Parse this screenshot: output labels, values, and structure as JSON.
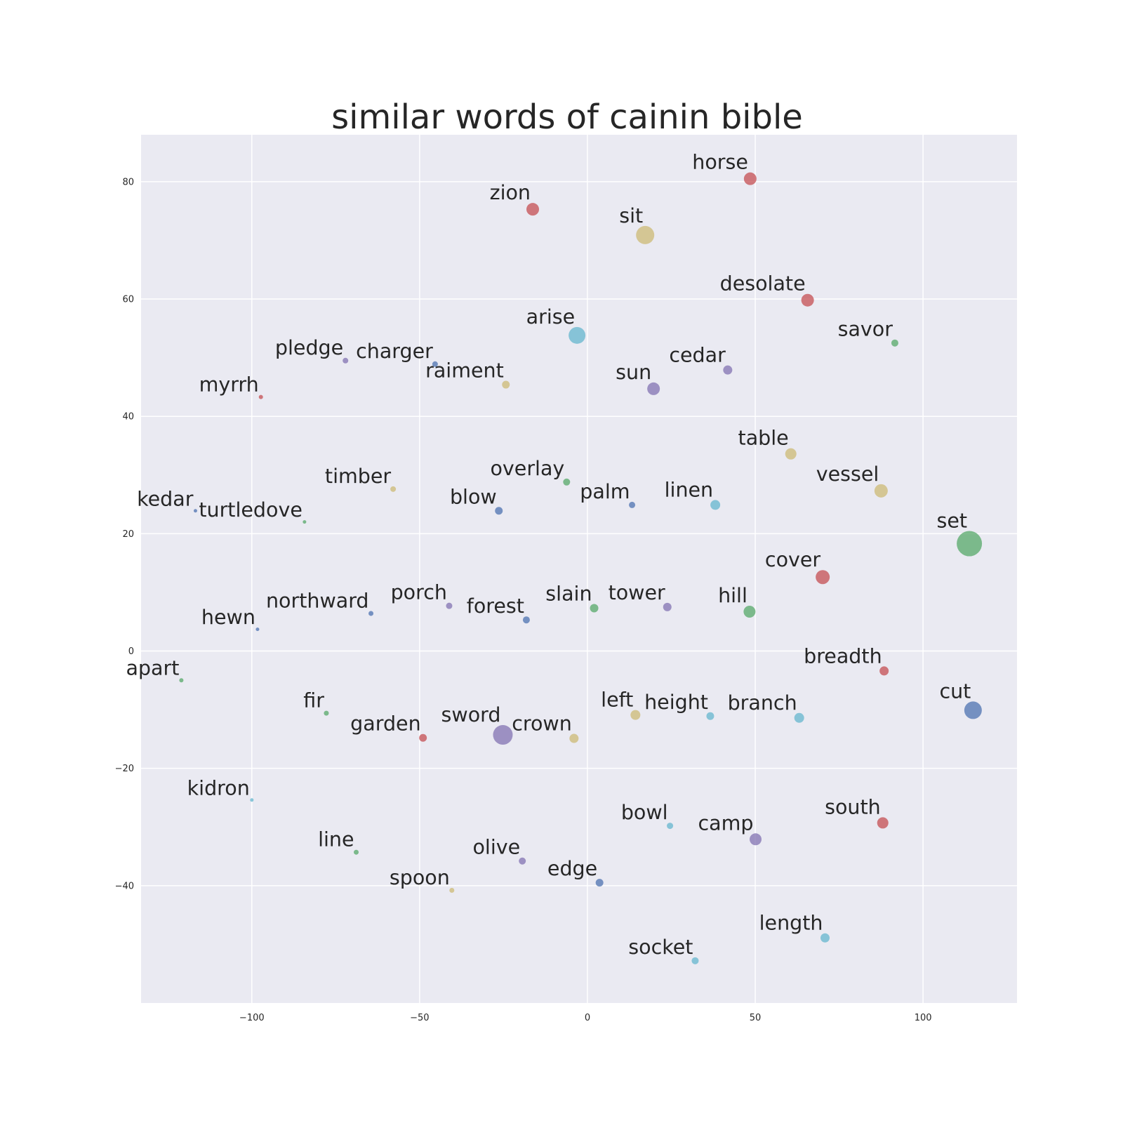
{
  "chart_data": {
    "type": "scatter",
    "title": "similar words of cainin bible",
    "xlabel": "",
    "ylabel": "",
    "xlim": [
      -133,
      128
    ],
    "ylim": [
      -60,
      88
    ],
    "x_ticks": [
      -100,
      -50,
      0,
      50,
      100
    ],
    "y_ticks": [
      80,
      60,
      40,
      20,
      0,
      -20,
      -40
    ],
    "x_tick_labels": [
      "−100",
      "−50",
      "0",
      "50",
      "100"
    ],
    "y_tick_labels": [
      "80",
      "60",
      "40",
      "20",
      "0",
      "−20",
      "−40"
    ],
    "grid": true,
    "background": "#eaeaf2",
    "palette": {
      "blue": "#4c72b0",
      "green": "#55a868",
      "red": "#c44e52",
      "purple": "#8172b2",
      "yellow": "#ccb974",
      "cyan": "#64b5cd"
    },
    "points": [
      {
        "word": "horse",
        "x": 48.5,
        "y": 80.5,
        "size": 9,
        "color": "red"
      },
      {
        "word": "zion",
        "x": -16.3,
        "y": 75.3,
        "size": 9,
        "color": "red"
      },
      {
        "word": "sit",
        "x": 17.2,
        "y": 70.9,
        "size": 13,
        "color": "yellow"
      },
      {
        "word": "desolate",
        "x": 65.6,
        "y": 59.8,
        "size": 9,
        "color": "red"
      },
      {
        "word": "arise",
        "x": -3.1,
        "y": 53.8,
        "size": 12,
        "color": "cyan"
      },
      {
        "word": "savor",
        "x": 91.6,
        "y": 52.5,
        "size": 5,
        "color": "green"
      },
      {
        "word": "pledge",
        "x": -72.1,
        "y": 49.5,
        "size": 4,
        "color": "purple"
      },
      {
        "word": "charger",
        "x": -45.4,
        "y": 48.9,
        "size": 4,
        "color": "blue"
      },
      {
        "word": "cedar",
        "x": 41.8,
        "y": 47.9,
        "size": 6.5,
        "color": "purple"
      },
      {
        "word": "raiment",
        "x": -24.3,
        "y": 45.4,
        "size": 5.5,
        "color": "yellow"
      },
      {
        "word": "sun",
        "x": 19.7,
        "y": 44.7,
        "size": 9,
        "color": "purple"
      },
      {
        "word": "myrrh",
        "x": -97.3,
        "y": 43.3,
        "size": 3,
        "color": "red"
      },
      {
        "word": "table",
        "x": 60.6,
        "y": 33.6,
        "size": 8,
        "color": "yellow"
      },
      {
        "word": "timber",
        "x": -57.9,
        "y": 27.6,
        "size": 4,
        "color": "yellow"
      },
      {
        "word": "overlay",
        "x": -6.2,
        "y": 28.8,
        "size": 5,
        "color": "green"
      },
      {
        "word": "vessel",
        "x": 87.5,
        "y": 27.3,
        "size": 9.5,
        "color": "yellow"
      },
      {
        "word": "palm",
        "x": 13.3,
        "y": 24.9,
        "size": 4.5,
        "color": "blue"
      },
      {
        "word": "linen",
        "x": 38.1,
        "y": 24.9,
        "size": 7,
        "color": "cyan"
      },
      {
        "word": "blow",
        "x": -26.4,
        "y": 23.9,
        "size": 5.5,
        "color": "blue"
      },
      {
        "word": "kedar",
        "x": -116.8,
        "y": 23.9,
        "size": 2.5,
        "color": "blue"
      },
      {
        "word": "turtledove",
        "x": -84.3,
        "y": 22.0,
        "size": 2.5,
        "color": "green"
      },
      {
        "word": "set",
        "x": 113.8,
        "y": 18.3,
        "size": 18,
        "color": "green"
      },
      {
        "word": "cover",
        "x": 70.1,
        "y": 12.6,
        "size": 10,
        "color": "red"
      },
      {
        "word": "northward",
        "x": -64.5,
        "y": 6.4,
        "size": 3.5,
        "color": "blue"
      },
      {
        "word": "porch",
        "x": -41.2,
        "y": 7.7,
        "size": 4.5,
        "color": "purple"
      },
      {
        "word": "forest",
        "x": -18.2,
        "y": 5.3,
        "size": 5,
        "color": "blue"
      },
      {
        "word": "slain",
        "x": 2.0,
        "y": 7.3,
        "size": 6,
        "color": "green"
      },
      {
        "word": "tower",
        "x": 23.8,
        "y": 7.5,
        "size": 6,
        "color": "purple"
      },
      {
        "word": "hill",
        "x": 48.3,
        "y": 6.7,
        "size": 8.5,
        "color": "green"
      },
      {
        "word": "hewn",
        "x": -98.3,
        "y": 3.7,
        "size": 2.5,
        "color": "blue"
      },
      {
        "word": "breadth",
        "x": 88.4,
        "y": -3.4,
        "size": 6.5,
        "color": "red"
      },
      {
        "word": "apart",
        "x": -121.0,
        "y": -5.0,
        "size": 3,
        "color": "green"
      },
      {
        "word": "cut",
        "x": 114.9,
        "y": -10.1,
        "size": 12.5,
        "color": "blue"
      },
      {
        "word": "fir",
        "x": -77.8,
        "y": -10.6,
        "size": 3.5,
        "color": "green"
      },
      {
        "word": "left",
        "x": 14.3,
        "y": -10.9,
        "size": 7,
        "color": "yellow"
      },
      {
        "word": "height",
        "x": 36.6,
        "y": -11.1,
        "size": 5.5,
        "color": "cyan"
      },
      {
        "word": "branch",
        "x": 63.1,
        "y": -11.4,
        "size": 7,
        "color": "cyan"
      },
      {
        "word": "garden",
        "x": -49.0,
        "y": -14.8,
        "size": 5.5,
        "color": "red"
      },
      {
        "word": "sword",
        "x": -25.2,
        "y": -14.3,
        "size": 14,
        "color": "purple"
      },
      {
        "word": "crown",
        "x": -4.0,
        "y": -14.9,
        "size": 6.5,
        "color": "yellow"
      },
      {
        "word": "kidron",
        "x": -100.0,
        "y": -25.4,
        "size": 2.5,
        "color": "cyan"
      },
      {
        "word": "bowl",
        "x": 24.6,
        "y": -29.8,
        "size": 4.5,
        "color": "cyan"
      },
      {
        "word": "south",
        "x": 88.0,
        "y": -29.3,
        "size": 8,
        "color": "red"
      },
      {
        "word": "camp",
        "x": 50.1,
        "y": -32.1,
        "size": 8.5,
        "color": "purple"
      },
      {
        "word": "line",
        "x": -68.9,
        "y": -34.3,
        "size": 3.5,
        "color": "green"
      },
      {
        "word": "olive",
        "x": -19.4,
        "y": -35.8,
        "size": 5,
        "color": "purple"
      },
      {
        "word": "edge",
        "x": 3.6,
        "y": -39.5,
        "size": 5.5,
        "color": "blue"
      },
      {
        "word": "spoon",
        "x": -40.4,
        "y": -40.8,
        "size": 3.5,
        "color": "yellow"
      },
      {
        "word": "length",
        "x": 70.8,
        "y": -48.9,
        "size": 6.5,
        "color": "cyan"
      },
      {
        "word": "socket",
        "x": 32.1,
        "y": -52.8,
        "size": 5,
        "color": "cyan"
      }
    ]
  }
}
